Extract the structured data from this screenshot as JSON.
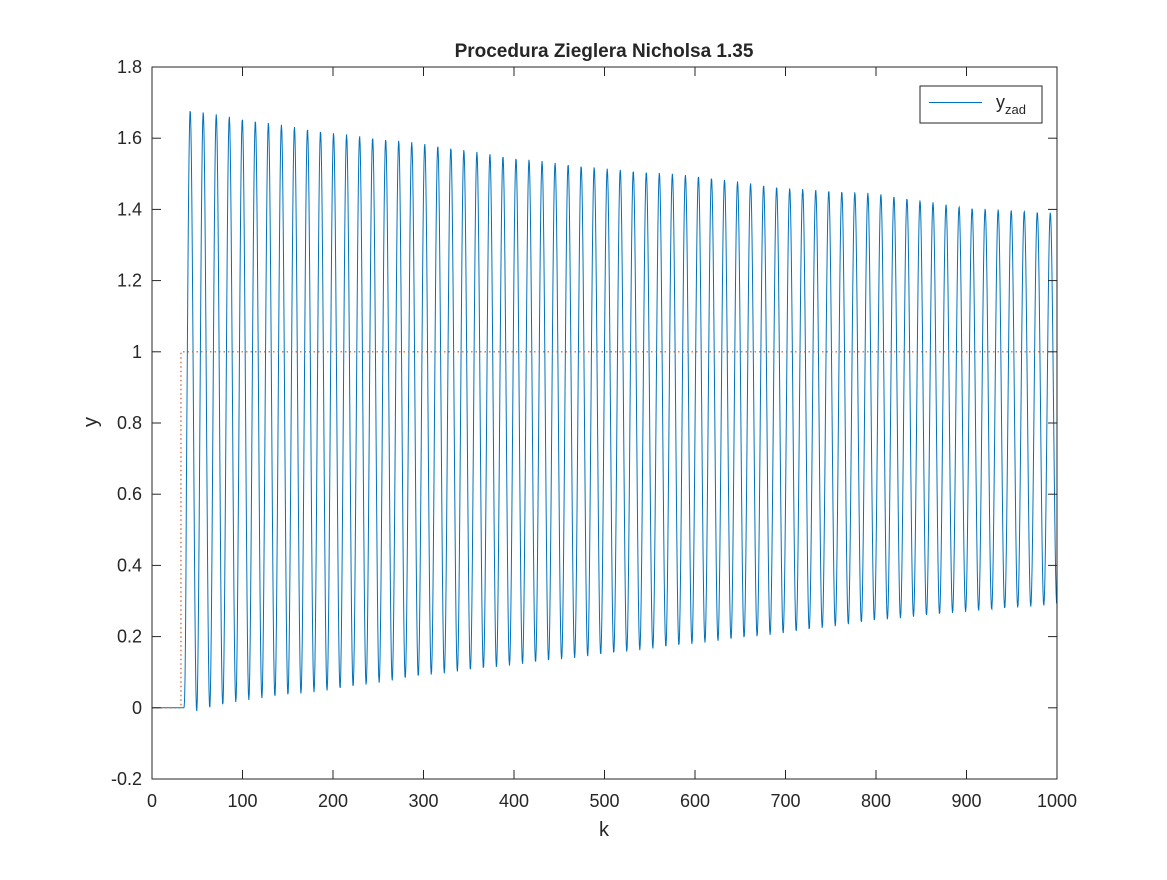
{
  "chart_data": {
    "type": "line",
    "title": "Procedura Zieglera Nicholsa 1.35",
    "xlabel": "k",
    "ylabel": "y",
    "xlim": [
      0,
      1000
    ],
    "ylim": [
      -0.2,
      1.8
    ],
    "xticks": [
      0,
      100,
      200,
      300,
      400,
      500,
      600,
      700,
      800,
      900,
      1000
    ],
    "yticks": [
      -0.2,
      0,
      0.2,
      0.4,
      0.6,
      0.8,
      1,
      1.2,
      1.4,
      1.6,
      1.8
    ],
    "ytick_labels": [
      "-0.2",
      "0",
      "0.2",
      "0.4",
      "0.6",
      "0.8",
      "1",
      "1.2",
      "1.4",
      "1.6",
      "1.8"
    ],
    "grid": false,
    "legend": {
      "placement": "top-right",
      "entries": [
        {
          "base": "y",
          "subscript": "zad",
          "series": "output"
        }
      ]
    },
    "series": [
      {
        "id": "output",
        "style": "solid",
        "color": "#0072BD",
        "step_k": 32,
        "start_k": 35,
        "period": 14.4,
        "peaks": [
          [
            40,
            1.68
          ],
          [
            100,
            1.655
          ],
          [
            200,
            1.615
          ],
          [
            300,
            1.585
          ],
          [
            400,
            1.545
          ],
          [
            500,
            1.515
          ],
          [
            600,
            1.495
          ],
          [
            700,
            1.46
          ],
          [
            800,
            1.445
          ],
          [
            900,
            1.405
          ],
          [
            1000,
            1.39
          ]
        ],
        "troughs": [
          [
            50,
            -0.01
          ],
          [
            100,
            0.02
          ],
          [
            200,
            0.05
          ],
          [
            300,
            0.09
          ],
          [
            400,
            0.12
          ],
          [
            500,
            0.15
          ],
          [
            600,
            0.18
          ],
          [
            700,
            0.21
          ],
          [
            800,
            0.245
          ],
          [
            900,
            0.27
          ],
          [
            1000,
            0.29
          ]
        ]
      },
      {
        "id": "setpoint",
        "style": "dotted",
        "color": "#D95319",
        "x": [
          0,
          32,
          32,
          1000
        ],
        "y": [
          0,
          0,
          1,
          1
        ]
      }
    ]
  }
}
